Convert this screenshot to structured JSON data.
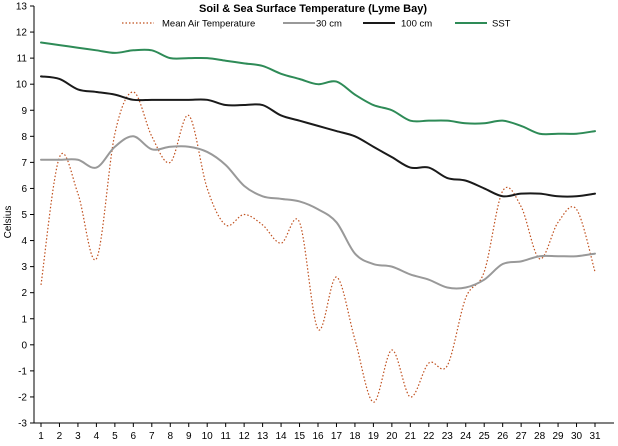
{
  "chart_data": {
    "type": "line",
    "title": "Soil & Sea Surface Temperature (Lyme Bay)",
    "xlabel": "",
    "ylabel": "Celsius",
    "x": [
      1,
      2,
      3,
      4,
      5,
      6,
      7,
      8,
      9,
      10,
      11,
      12,
      13,
      14,
      15,
      16,
      17,
      18,
      19,
      20,
      21,
      22,
      23,
      24,
      25,
      26,
      27,
      28,
      29,
      30,
      31
    ],
    "xticks": [
      "1",
      "2",
      "3",
      "4",
      "5",
      "6",
      "7",
      "8",
      "9",
      "10",
      "11",
      "12",
      "13",
      "14",
      "15",
      "16",
      "17",
      "18",
      "19",
      "20",
      "21",
      "22",
      "23",
      "24",
      "25",
      "26",
      "27",
      "28",
      "29",
      "30",
      "31"
    ],
    "ylim": [
      -3,
      13
    ],
    "yticks": [
      "-3",
      "-2",
      "-1",
      "0",
      "1",
      "2",
      "3",
      "4",
      "5",
      "6",
      "7",
      "8",
      "9",
      "10",
      "11",
      "12",
      "13"
    ],
    "grid": false,
    "legend_position": "top",
    "series": [
      {
        "name": "Mean Air Temperature",
        "style": "dotted",
        "color": "#c0501e",
        "values": [
          2.3,
          7.2,
          5.8,
          3.3,
          8.1,
          9.7,
          8.0,
          7.0,
          8.8,
          6.0,
          4.6,
          5.0,
          4.6,
          3.9,
          4.7,
          0.6,
          2.6,
          0.2,
          -2.2,
          -0.2,
          -2.0,
          -0.7,
          -0.8,
          1.8,
          2.8,
          5.9,
          5.3,
          3.3,
          4.7,
          5.2,
          2.8
        ]
      },
      {
        "name": "30 cm",
        "style": "solid",
        "color": "#999999",
        "values": [
          7.1,
          7.1,
          7.1,
          6.8,
          7.6,
          8.0,
          7.5,
          7.6,
          7.6,
          7.4,
          6.9,
          6.1,
          5.7,
          5.6,
          5.5,
          5.2,
          4.7,
          3.5,
          3.1,
          3.0,
          2.7,
          2.5,
          2.2,
          2.2,
          2.5,
          3.1,
          3.2,
          3.4,
          3.4,
          3.4,
          3.5
        ]
      },
      {
        "name": "100 cm",
        "style": "solid",
        "color": "#1a1a1a",
        "values": [
          10.3,
          10.2,
          9.8,
          9.7,
          9.6,
          9.4,
          9.4,
          9.4,
          9.4,
          9.4,
          9.2,
          9.2,
          9.2,
          8.8,
          8.6,
          8.4,
          8.2,
          8.0,
          7.6,
          7.2,
          6.8,
          6.8,
          6.4,
          6.3,
          6.0,
          5.7,
          5.8,
          5.8,
          5.7,
          5.7,
          5.8
        ]
      },
      {
        "name": "SST",
        "style": "solid",
        "color": "#2e8b57",
        "values": [
          11.6,
          11.5,
          11.4,
          11.3,
          11.2,
          11.3,
          11.3,
          11.0,
          11.0,
          11.0,
          10.9,
          10.8,
          10.7,
          10.4,
          10.2,
          10.0,
          10.1,
          9.6,
          9.2,
          9.0,
          8.6,
          8.6,
          8.6,
          8.5,
          8.5,
          8.6,
          8.4,
          8.1,
          8.1,
          8.1,
          8.2
        ]
      }
    ]
  }
}
